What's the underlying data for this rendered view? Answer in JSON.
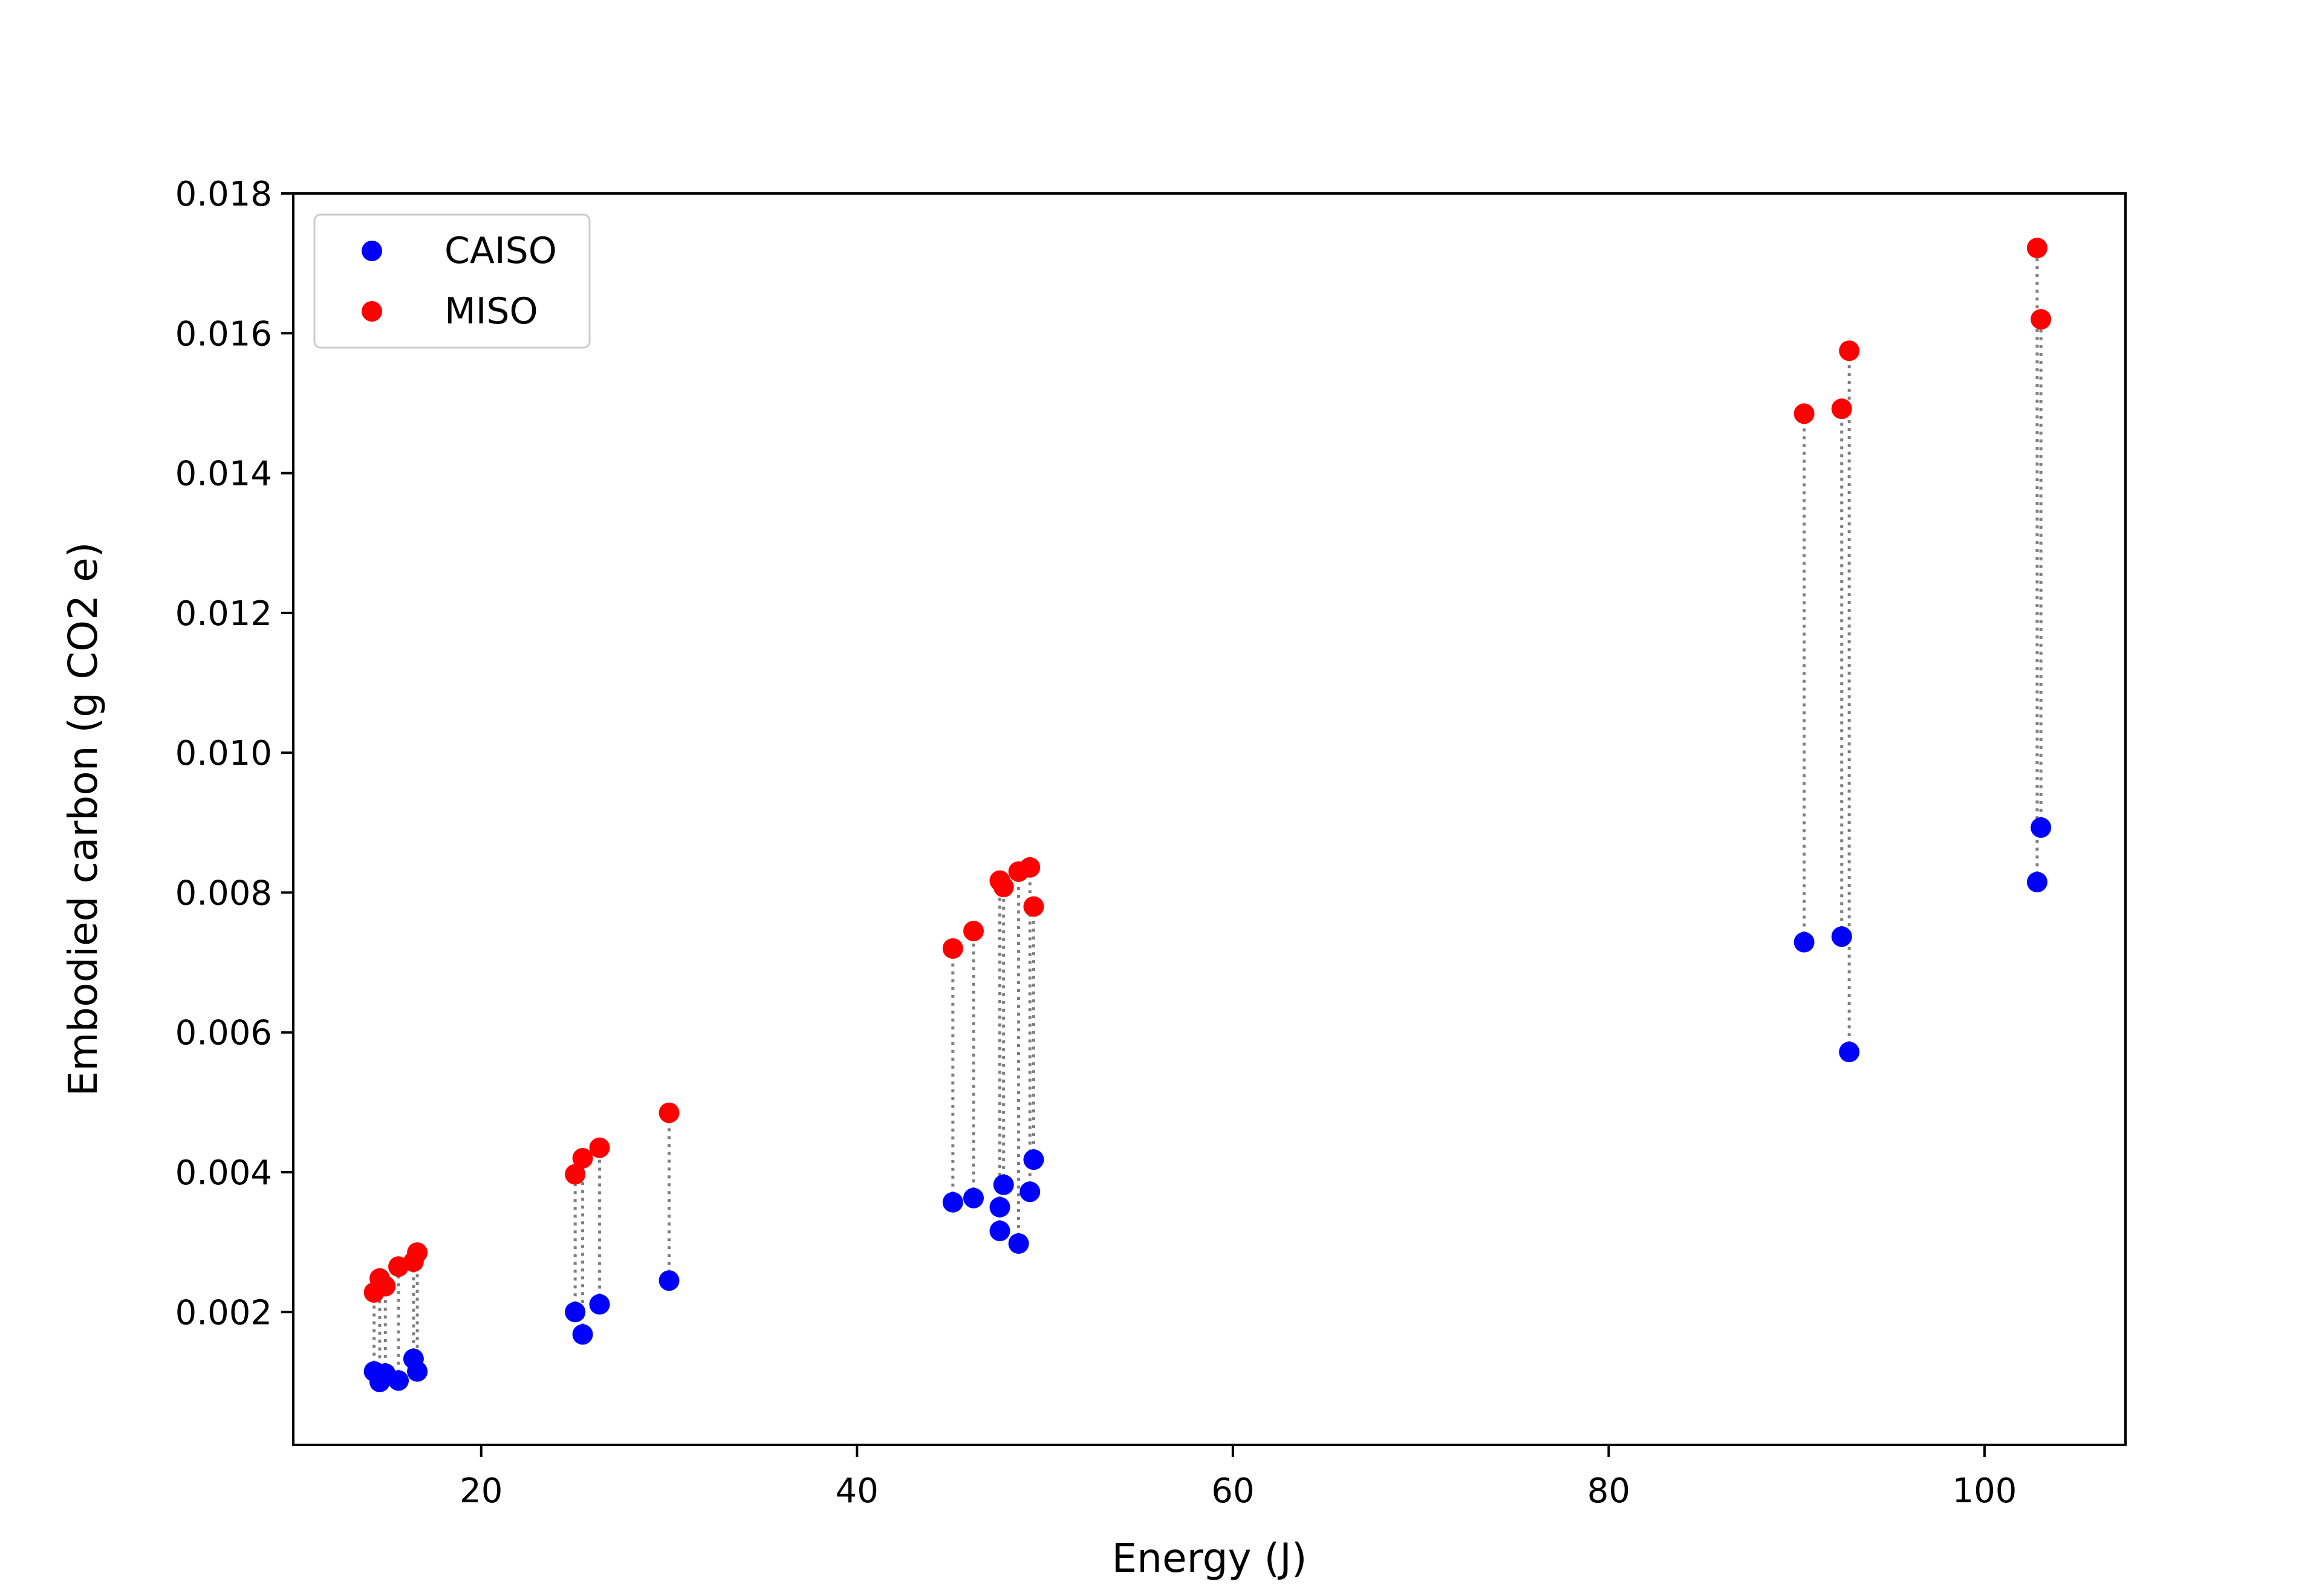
{
  "chart_data": {
    "type": "scatter",
    "xlabel": "Energy (J)",
    "ylabel": "Embodied carbon (g CO2 e)",
    "xlim": [
      10,
      107.5
    ],
    "ylim": [
      0.0001,
      0.018
    ],
    "xticks": [
      20,
      40,
      60,
      80,
      100
    ],
    "yticks": [
      0.002,
      0.004,
      0.006,
      0.008,
      0.01,
      0.012,
      0.014,
      0.016,
      0.018
    ],
    "ytick_labels": [
      "0.002",
      "0.004",
      "0.006",
      "0.008",
      "0.010",
      "0.012",
      "0.014",
      "0.016",
      "0.018"
    ],
    "xtick_labels": [
      "20",
      "40",
      "60",
      "80",
      "100"
    ],
    "legend_position": "top-left",
    "grid": false,
    "connector": {
      "color": "#808080",
      "style": "dotted"
    },
    "series": [
      {
        "name": "CAISO",
        "color": "#0000ff",
        "points": [
          [
            14.3,
            0.00115
          ],
          [
            14.6,
            0.001
          ],
          [
            14.9,
            0.00112
          ],
          [
            15.6,
            0.00102
          ],
          [
            16.4,
            0.00133
          ],
          [
            16.6,
            0.00115
          ],
          [
            25.0,
            0.002
          ],
          [
            25.4,
            0.00168
          ],
          [
            26.3,
            0.00211
          ],
          [
            30.0,
            0.00245
          ],
          [
            45.1,
            0.00357
          ],
          [
            46.2,
            0.00363
          ],
          [
            47.6,
            0.00316
          ],
          [
            47.6,
            0.0035
          ],
          [
            47.8,
            0.00382
          ],
          [
            48.6,
            0.00298
          ],
          [
            49.2,
            0.00372
          ],
          [
            49.4,
            0.00418
          ],
          [
            90.4,
            0.00729
          ],
          [
            92.4,
            0.00737
          ],
          [
            92.8,
            0.00572
          ],
          [
            102.8,
            0.00815
          ],
          [
            103.0,
            0.00893
          ]
        ]
      },
      {
        "name": "MISO",
        "color": "#ff0000",
        "points": [
          [
            14.3,
            0.00228
          ],
          [
            14.6,
            0.00248
          ],
          [
            14.9,
            0.00237
          ],
          [
            15.6,
            0.00265
          ],
          [
            16.4,
            0.00272
          ],
          [
            16.6,
            0.00285
          ],
          [
            25.0,
            0.00397
          ],
          [
            25.4,
            0.0042
          ],
          [
            26.3,
            0.00435
          ],
          [
            30.0,
            0.00485
          ],
          [
            45.1,
            0.0072
          ],
          [
            46.2,
            0.00745
          ],
          [
            47.6,
            0.00817
          ],
          [
            47.6,
            0.00817
          ],
          [
            47.8,
            0.00808
          ],
          [
            48.6,
            0.0083
          ],
          [
            49.2,
            0.00836
          ],
          [
            49.4,
            0.0078
          ],
          [
            90.4,
            0.01485
          ],
          [
            92.4,
            0.01492
          ],
          [
            92.8,
            0.01575
          ],
          [
            102.8,
            0.01722
          ],
          [
            103.0,
            0.0162
          ]
        ]
      }
    ]
  }
}
